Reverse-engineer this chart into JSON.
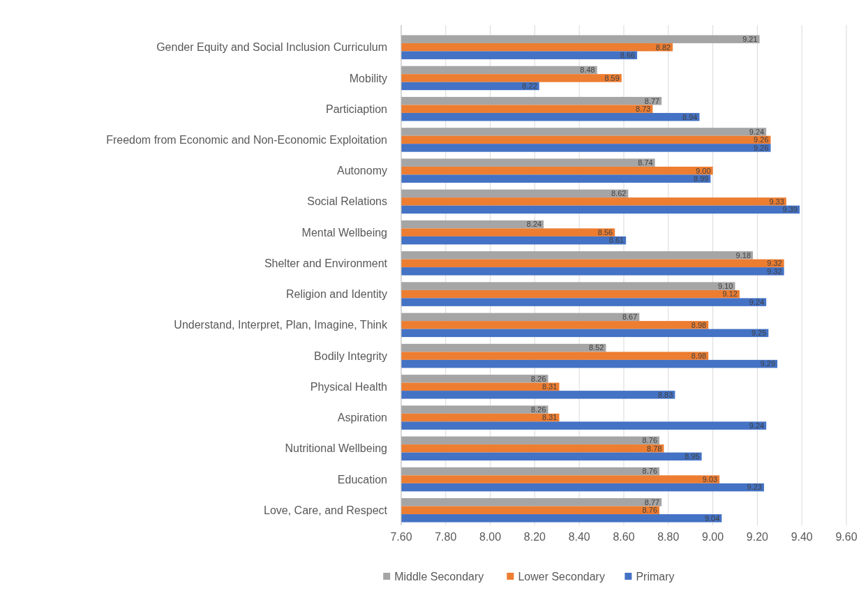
{
  "chart_data": {
    "type": "bar",
    "orientation": "horizontal",
    "categories": [
      "Gender Equity and Social Inclusion Curriculum",
      "Mobility",
      "Particiaption",
      "Freedom from Economic and Non-Economic Exploitation",
      "Autonomy",
      "Social Relations",
      "Mental Wellbeing",
      "Shelter and Environment",
      "Religion and Identity",
      "Understand, Interpret, Plan, Imagine, Think",
      "Bodily Integrity",
      "Physical Health",
      "Aspiration",
      "Nutritional Wellbeing",
      "Education",
      "Love, Care, and Respect"
    ],
    "series": [
      {
        "name": "Middle Secondary",
        "color": "#a5a5a5",
        "values": [
          9.21,
          8.48,
          8.77,
          9.24,
          8.74,
          8.62,
          8.24,
          9.18,
          9.1,
          8.67,
          8.52,
          8.26,
          8.26,
          8.76,
          8.76,
          8.77
        ],
        "value_labels": [
          "9.21",
          "8.48",
          "8.77",
          "9.24",
          "8.74",
          "8.62",
          "8.24",
          "9.18",
          "9.10",
          "8.67",
          "8.52",
          "8.26",
          "8.26",
          "8.76",
          "8.76",
          "8.77"
        ]
      },
      {
        "name": "Lower Secondary",
        "color": "#ed7d31",
        "values": [
          8.82,
          8.59,
          8.73,
          9.26,
          9.0,
          9.33,
          8.56,
          9.32,
          9.12,
          8.98,
          8.98,
          8.31,
          8.31,
          8.78,
          9.03,
          8.76
        ],
        "value_labels": [
          "8.82",
          "8.59",
          "8.73",
          "9.26",
          "9.00",
          "9.33",
          "8.56",
          "9.32",
          "9.12",
          "8.98",
          "8.98",
          "8.31",
          "8.31",
          "8.78",
          "9.03",
          "8.76"
        ]
      },
      {
        "name": "Primary",
        "color": "#4472c4",
        "values": [
          8.66,
          8.22,
          8.94,
          9.26,
          8.99,
          9.39,
          8.61,
          9.32,
          9.24,
          9.25,
          9.29,
          8.83,
          9.24,
          8.95,
          9.23,
          9.04
        ],
        "value_labels": [
          "8.66",
          "8.22",
          "8.94",
          "9.26",
          "8.99",
          "9.39",
          "8.61",
          "9.32",
          "9.24",
          "9.25",
          "9.29",
          "8.83",
          "9.24",
          "8.95",
          "9.23",
          "9.04"
        ]
      }
    ],
    "xlim": [
      7.6,
      9.6
    ],
    "xticks": [
      {
        "value": 7.6,
        "label": "7.60"
      },
      {
        "value": 7.8,
        "label": "7.80"
      },
      {
        "value": 8.0,
        "label": "8.00"
      },
      {
        "value": 8.2,
        "label": "8.20"
      },
      {
        "value": 8.4,
        "label": "8.40"
      },
      {
        "value": 8.6,
        "label": "8.60"
      },
      {
        "value": 8.8,
        "label": "8.80"
      },
      {
        "value": 9.0,
        "label": "9.00"
      },
      {
        "value": 9.2,
        "label": "9.20"
      },
      {
        "value": 9.4,
        "label": "9.40"
      },
      {
        "value": 9.6,
        "label": "9.60"
      }
    ],
    "grid": "x",
    "legend": "bottom"
  }
}
